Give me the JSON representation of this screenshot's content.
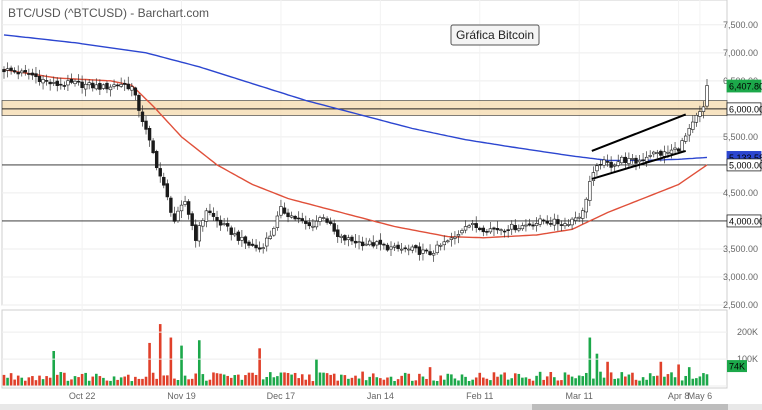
{
  "header": {
    "title": "BTC/USD (^BTCUSD) - Barchart.com"
  },
  "annotation": "Gráfica Bitcoin",
  "colors": {
    "up": "#1ca84a",
    "down": "#e0402a",
    "ma_short": "#e0503a",
    "ma_long": "#2c46d0",
    "zone": "#f5d8a8",
    "hline": "#222222"
  },
  "chart_data": {
    "type": "candlestick",
    "title": "BTC/USD (^BTCUSD) - Barchart.com",
    "annotation": "Gráfica Bitcoin",
    "y_ticks": [
      "7,500.00",
      "7,000.00",
      "6,500.00",
      "5,500.00",
      "4,500.00",
      "3,500.00",
      "3,000.00",
      "2,500.00"
    ],
    "ylim": [
      2500,
      7800
    ],
    "x_ticks": [
      "Oct 22",
      "Nov 19",
      "Dec 17",
      "Jan 14",
      "Feb 11",
      "Mar 11",
      "Apr 8",
      "May 6"
    ],
    "price_tags": [
      {
        "label": "6,407.80",
        "value": 6407.8,
        "style": "green"
      },
      {
        "label": "6,000.00",
        "value": 6000,
        "style": "white"
      },
      {
        "label": "5,133.58",
        "value": 5133.58,
        "style": "blue"
      },
      {
        "label": "5,000.00",
        "value": 5000,
        "style": "white"
      },
      {
        "label": "4,000.00",
        "value": 4000,
        "style": "white"
      }
    ],
    "horizontal_lines": [
      6000,
      5000,
      4000
    ],
    "resistance_zone": [
      5880,
      6150
    ],
    "channel": {
      "upper": [
        [
          0,
          5250
        ],
        [
          1,
          5900
        ]
      ],
      "lower": [
        [
          0,
          4750
        ],
        [
          1,
          5250
        ]
      ]
    },
    "ohlc_keyframes": [
      [
        0,
        6700
      ],
      [
        8,
        6600
      ],
      [
        14,
        6430
      ],
      [
        20,
        6450
      ],
      [
        28,
        6380
      ],
      [
        33,
        6450
      ],
      [
        36,
        6380
      ],
      [
        38,
        6000
      ],
      [
        42,
        5200
      ],
      [
        45,
        4600
      ],
      [
        48,
        4000
      ],
      [
        51,
        4350
      ],
      [
        54,
        3700
      ],
      [
        57,
        4200
      ],
      [
        60,
        4000
      ],
      [
        64,
        3800
      ],
      [
        68,
        3600
      ],
      [
        72,
        3500
      ],
      [
        75,
        3750
      ],
      [
        78,
        4200
      ],
      [
        82,
        4050
      ],
      [
        86,
        3900
      ],
      [
        90,
        4100
      ],
      [
        94,
        3700
      ],
      [
        100,
        3620
      ],
      [
        105,
        3580
      ],
      [
        110,
        3500
      ],
      [
        115,
        3480
      ],
      [
        120,
        3420
      ],
      [
        124,
        3600
      ],
      [
        127,
        3700
      ],
      [
        130,
        3950
      ],
      [
        134,
        3870
      ],
      [
        138,
        3850
      ],
      [
        145,
        3900
      ],
      [
        152,
        4000
      ],
      [
        158,
        3950
      ],
      [
        163,
        4150
      ],
      [
        165,
        4700
      ],
      [
        168,
        5050
      ],
      [
        171,
        5000
      ],
      [
        174,
        5100
      ],
      [
        178,
        5050
      ],
      [
        182,
        5200
      ],
      [
        186,
        5200
      ],
      [
        190,
        5300
      ],
      [
        193,
        5600
      ],
      [
        195,
        5850
      ],
      [
        197,
        6000
      ],
      [
        198,
        6407.8
      ]
    ],
    "ma_short_keyframes": [
      [
        0,
        6700
      ],
      [
        15,
        6550
      ],
      [
        30,
        6500
      ],
      [
        36,
        6420
      ],
      [
        42,
        6050
      ],
      [
        50,
        5500
      ],
      [
        60,
        5000
      ],
      [
        70,
        4650
      ],
      [
        80,
        4400
      ],
      [
        95,
        4150
      ],
      [
        110,
        3900
      ],
      [
        125,
        3720
      ],
      [
        135,
        3700
      ],
      [
        150,
        3750
      ],
      [
        160,
        3850
      ],
      [
        170,
        4150
      ],
      [
        180,
        4400
      ],
      [
        190,
        4650
      ],
      [
        198,
        5000
      ]
    ],
    "ma_long_keyframes": [
      [
        0,
        7320
      ],
      [
        20,
        7180
      ],
      [
        40,
        7000
      ],
      [
        55,
        6750
      ],
      [
        70,
        6450
      ],
      [
        85,
        6150
      ],
      [
        100,
        5900
      ],
      [
        115,
        5650
      ],
      [
        130,
        5450
      ],
      [
        145,
        5300
      ],
      [
        160,
        5160
      ],
      [
        170,
        5080
      ],
      [
        180,
        5080
      ],
      [
        190,
        5100
      ],
      [
        198,
        5133.58
      ]
    ],
    "volume_ticks": [
      "200K",
      "100K",
      "74K"
    ],
    "volume_max": 260000,
    "volume_last": 74000,
    "volume_spikes": [
      {
        "i": 14,
        "v": 130000
      },
      {
        "i": 41,
        "v": 160000
      },
      {
        "i": 44,
        "v": 230000
      },
      {
        "i": 47,
        "v": 180000
      },
      {
        "i": 50,
        "v": 150000
      },
      {
        "i": 55,
        "v": 170000
      },
      {
        "i": 72,
        "v": 140000
      },
      {
        "i": 88,
        "v": 100000
      },
      {
        "i": 120,
        "v": 70000
      },
      {
        "i": 165,
        "v": 180000
      },
      {
        "i": 167,
        "v": 120000
      },
      {
        "i": 170,
        "v": 90000
      },
      {
        "i": 185,
        "v": 90000
      },
      {
        "i": 190,
        "v": 80000
      },
      {
        "i": 193,
        "v": 70000
      }
    ]
  }
}
